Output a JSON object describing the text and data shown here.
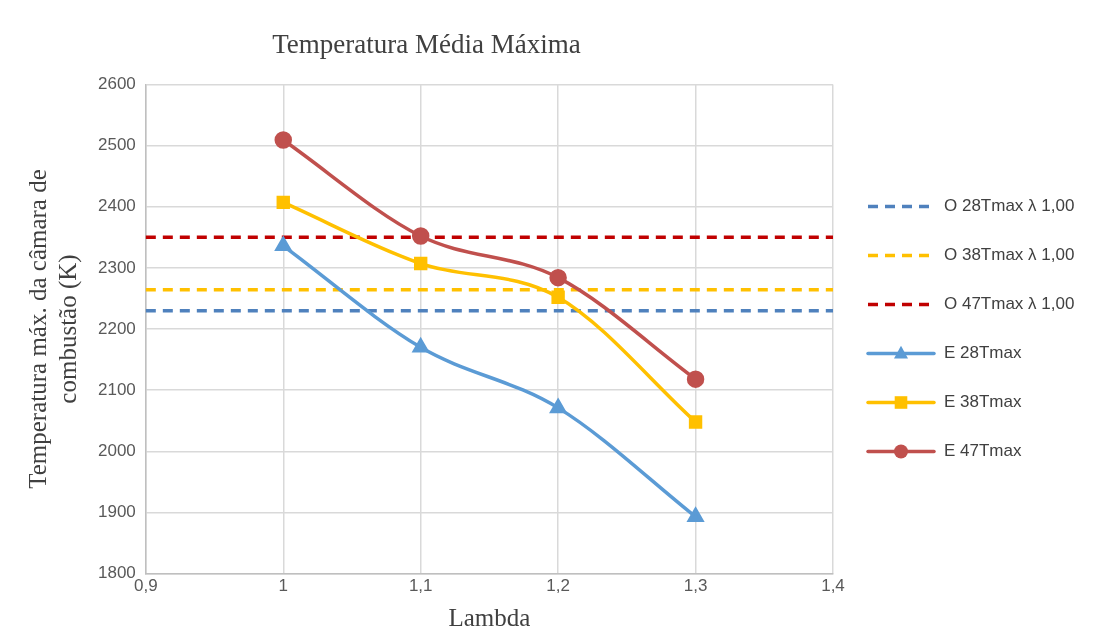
{
  "chart_data": {
    "type": "line",
    "title": "Temperatura Média Máxima",
    "xlabel": "Lambda",
    "ylabel": "Temperatura máx. da câmara de combustão (K)",
    "x": [
      1,
      1.1,
      1.2,
      1.3
    ],
    "series": [
      {
        "name": "E 28Tmax",
        "color": "#5b9bd5",
        "values": [
          2336,
          2170,
          2071,
          1893
        ],
        "marker": "triangle"
      },
      {
        "name": "E 38Tmax",
        "color": "#ffc000",
        "values": [
          2407,
          2307,
          2252,
          2048
        ],
        "marker": "square"
      },
      {
        "name": "E 47Tmax",
        "color": "#c0504d",
        "values": [
          2509,
          2352,
          2284,
          2118
        ],
        "marker": "circle"
      }
    ],
    "xlim": [
      0.9,
      1.4
    ],
    "xticks": [
      {
        "value": 0.9,
        "label": "0,9"
      },
      1,
      {
        "value": 1.1,
        "label": "1,1"
      },
      {
        "value": 1.2,
        "label": "1,2"
      },
      {
        "value": 1.3,
        "label": "1,3"
      },
      {
        "value": 1.4,
        "label": "1,4"
      }
    ],
    "ylim": [
      1800,
      2600
    ],
    "yticks": [
      1800,
      1900,
      2000,
      2100,
      2200,
      2300,
      2400,
      2500,
      2600
    ],
    "ref_lines": [
      {
        "axis": "y",
        "value": 2230,
        "label": "O 28Tmax λ 1,00",
        "color": "#4f81bd",
        "line_style": "dashed"
      },
      {
        "axis": "y",
        "value": 2264,
        "label": "O 38Tmax λ 1,00",
        "color": "#ffc000",
        "line_style": "dashed"
      },
      {
        "axis": "y",
        "value": 2350,
        "label": "O 47Tmax λ 1,00",
        "color": "#c00000",
        "line_style": "dashed"
      }
    ],
    "grid": true,
    "legend": "right",
    "line_style": "solid"
  }
}
